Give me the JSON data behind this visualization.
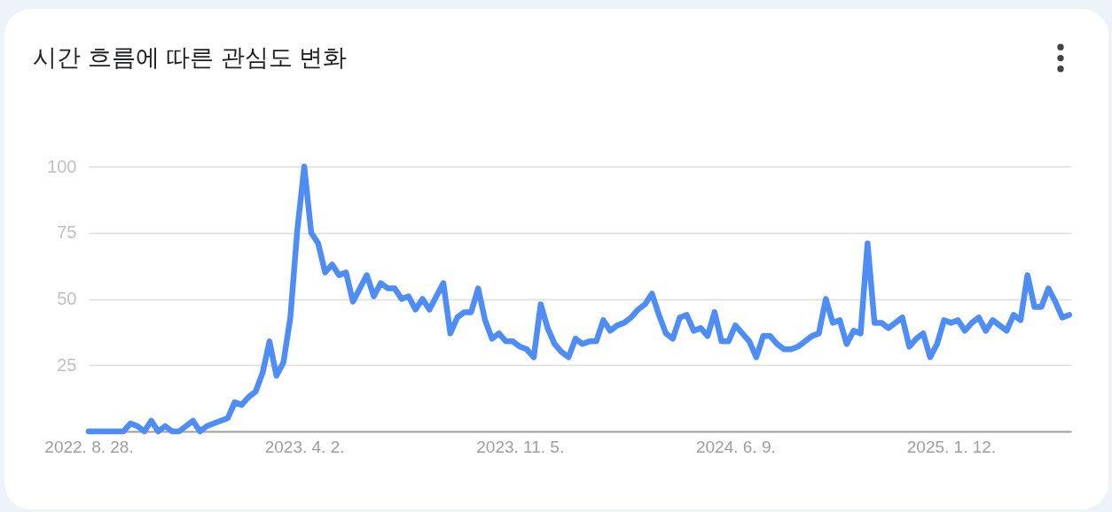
{
  "chart_data": {
    "type": "line",
    "title": "시간 흐름에 따른 관심도 변화",
    "color": "#4e8df5",
    "x": [
      "2022-08-28",
      "2022-10-02",
      "2022-10-09",
      "2022-10-16",
      "2022-10-23",
      "2022-10-30",
      "2022-11-06",
      "2022-11-13",
      "2022-11-20",
      "2022-11-27",
      "2022-12-11",
      "2022-12-18",
      "2022-12-25",
      "2023-01-15",
      "2023-01-22",
      "2023-01-29",
      "2023-02-05",
      "2023-02-12",
      "2023-02-19",
      "2023-02-26",
      "2023-03-05",
      "2023-03-12",
      "2023-03-19",
      "2023-03-26",
      "2023-04-02",
      "2023-04-09",
      "2023-04-16",
      "2023-04-23",
      "2023-04-30",
      "2023-05-07",
      "2023-05-14",
      "2023-05-21",
      "2023-06-04",
      "2023-06-11",
      "2023-06-18",
      "2023-06-25",
      "2023-07-02",
      "2023-07-09",
      "2023-07-16",
      "2023-07-23",
      "2023-07-30",
      "2023-08-06",
      "2023-08-20",
      "2023-08-27",
      "2023-09-03",
      "2023-09-10",
      "2023-09-17",
      "2023-09-24",
      "2023-10-01",
      "2023-10-08",
      "2023-10-15",
      "2023-10-22",
      "2023-10-29",
      "2023-11-05",
      "2023-11-12",
      "2023-11-19",
      "2023-11-26",
      "2023-12-03",
      "2023-12-10",
      "2023-12-17",
      "2023-12-24",
      "2023-12-31",
      "2024-01-07",
      "2024-01-14",
      "2024-01-21",
      "2024-01-28",
      "2024-02-04",
      "2024-02-11",
      "2024-02-18",
      "2024-02-25",
      "2024-03-03",
      "2024-03-10",
      "2024-03-17",
      "2024-03-24",
      "2024-03-31",
      "2024-04-07",
      "2024-04-14",
      "2024-04-21",
      "2024-04-28",
      "2024-05-05",
      "2024-05-12",
      "2024-05-19",
      "2024-05-26",
      "2024-06-02",
      "2024-06-09",
      "2024-06-16",
      "2024-06-23",
      "2024-06-30",
      "2024-07-07",
      "2024-07-14",
      "2024-07-21",
      "2024-07-28",
      "2024-08-04",
      "2024-08-11",
      "2024-08-18",
      "2024-08-25",
      "2024-09-01",
      "2024-09-08",
      "2024-09-15",
      "2024-09-22",
      "2024-09-29",
      "2024-10-06",
      "2024-10-13",
      "2024-10-20",
      "2024-10-27",
      "2024-11-03",
      "2024-11-10",
      "2024-11-17",
      "2024-11-24",
      "2024-12-01",
      "2024-12-08",
      "2024-12-15",
      "2024-12-22",
      "2024-12-29",
      "2025-01-05",
      "2025-01-12",
      "2025-01-19",
      "2025-01-26",
      "2025-02-02",
      "2025-02-09",
      "2025-02-16",
      "2025-02-23",
      "2025-03-02",
      "2025-03-09",
      "2025-03-16",
      "2025-03-23",
      "2025-03-30",
      "2025-04-06",
      "2025-04-13",
      "2025-04-20",
      "2025-04-27",
      "2025-05-04",
      "2025-05-11"
    ],
    "values": [
      0,
      0,
      3,
      2,
      0,
      4,
      0,
      2,
      0,
      0,
      4,
      0,
      2,
      5,
      11,
      10,
      13,
      15,
      22,
      34,
      21,
      26,
      43,
      76,
      100,
      75,
      71,
      60,
      63,
      59,
      60,
      49,
      59,
      51,
      56,
      54,
      54,
      50,
      51,
      46,
      50,
      46,
      56,
      37,
      43,
      45,
      45,
      54,
      42,
      35,
      37,
      34,
      34,
      32,
      31,
      28,
      48,
      39,
      33,
      30,
      28,
      35,
      33,
      34,
      34,
      42,
      38,
      40,
      41,
      43,
      46,
      48,
      52,
      44,
      37,
      35,
      43,
      44,
      38,
      39,
      36,
      45,
      34,
      34,
      40,
      37,
      34,
      28,
      36,
      36,
      33,
      31,
      31,
      32,
      34,
      36,
      37,
      50,
      41,
      42,
      33,
      38,
      37,
      71,
      41,
      41,
      39,
      41,
      43,
      32,
      35,
      37,
      28,
      33,
      42,
      41,
      42,
      38,
      41,
      43,
      38,
      42,
      40,
      38,
      44,
      42,
      59,
      47,
      47,
      54,
      49,
      43,
      44
    ],
    "xlim": [
      "2022-08-28",
      "2025-05-13"
    ],
    "xticks": [
      {
        "value": "2022-08-28",
        "label": "2022. 8. 28."
      },
      {
        "value": "2023-04-02",
        "label": "2023. 4. 2."
      },
      {
        "value": "2023-11-05",
        "label": "2023. 11. 5."
      },
      {
        "value": "2024-06-09",
        "label": "2024. 6. 9."
      },
      {
        "value": "2025-01-12",
        "label": "2025. 1. 12."
      }
    ],
    "ylim": [
      0,
      100
    ],
    "yticks": [
      25,
      50,
      75,
      100
    ],
    "grid": "y"
  }
}
